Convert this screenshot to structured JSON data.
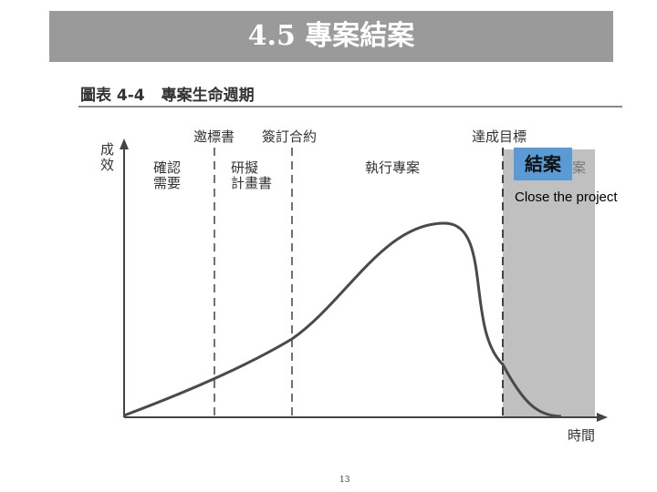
{
  "slide": {
    "title": "4.5 專案結案",
    "page_number": "13"
  },
  "figure": {
    "number": "圖表 4-4",
    "title": "專案生命週期",
    "y_axis_label": [
      "成",
      "效"
    ],
    "x_axis_label": "時間",
    "milestones": [
      "邀標書",
      "簽訂合約",
      "達成目標"
    ],
    "phases": [
      {
        "label_line1": "確認",
        "label_line2": "需要"
      },
      {
        "label_line1": "研擬",
        "label_line2": "計畫書"
      },
      {
        "label_line1": "執行專案",
        "label_line2": ""
      },
      {
        "label_line1": "結案",
        "label_line2": ""
      }
    ],
    "highlight_label": "結案",
    "annotation": "Close the project"
  },
  "colors": {
    "banner": "#9a9a9a",
    "highlight": "#5b9bd5",
    "closing_phase": "#c0c0c0",
    "curve": "#4a4a4a"
  }
}
